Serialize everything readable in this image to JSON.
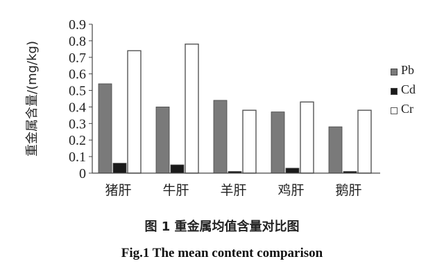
{
  "chart_data": {
    "type": "bar",
    "categories": [
      "猪肝",
      "牛肝",
      "羊肝",
      "鸡肝",
      "鹅肝"
    ],
    "series": [
      {
        "name": "Pb",
        "values": [
          0.54,
          0.4,
          0.44,
          0.37,
          0.28
        ],
        "color": "#7a7a7a",
        "fill": "solid"
      },
      {
        "name": "Cd",
        "values": [
          0.06,
          0.05,
          0.01,
          0.03,
          0.01
        ],
        "color": "#1a1a1a",
        "fill": "solid"
      },
      {
        "name": "Cr",
        "values": [
          0.74,
          0.78,
          0.38,
          0.43,
          0.38
        ],
        "color": "#ffffff",
        "fill": "outline"
      }
    ],
    "ylabel": "重金属含量/(mg/kg)",
    "ylim": [
      0,
      0.9
    ],
    "yticks": [
      "0.9",
      "0.8",
      "0.7",
      "0.6",
      "0.5",
      "0.4",
      "0.3",
      "0.2",
      "0.1",
      "0"
    ],
    "legend": "right",
    "grid": false
  },
  "caption": {
    "chinese": "图 1   重金属均值含量对比图",
    "english": "Fig.1    The mean content comparison"
  }
}
